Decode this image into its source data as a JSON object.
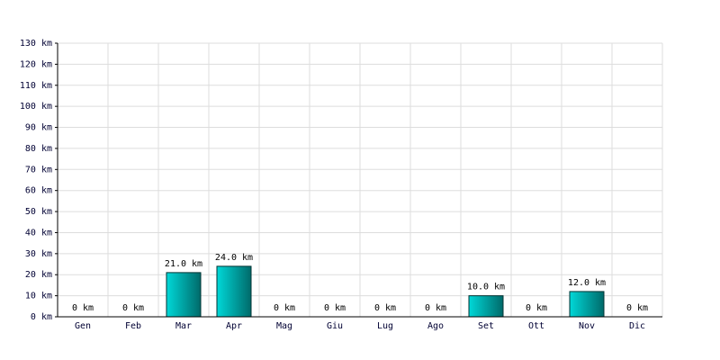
{
  "chart_data": {
    "type": "bar",
    "categories": [
      "Gen",
      "Feb",
      "Mar",
      "Apr",
      "Mag",
      "Giu",
      "Lug",
      "Ago",
      "Set",
      "Ott",
      "Nov",
      "Dic"
    ],
    "values": [
      0,
      0,
      21,
      24,
      0,
      0,
      0,
      0,
      10,
      0,
      12,
      0
    ],
    "value_labels": [
      "0 km",
      "0 km",
      "21.0 km",
      "24.0 km",
      "0 km",
      "0 km",
      "0 km",
      "0 km",
      "10.0 km",
      "0 km",
      "12.0 km",
      "0 km"
    ],
    "color": "#00d8d8",
    "ylim": [
      0,
      130
    ],
    "yticks": [
      {
        "value": 0,
        "label": "0 km"
      },
      {
        "value": 10,
        "label": "10 km"
      },
      {
        "value": 20,
        "label": "20 km"
      },
      {
        "value": 30,
        "label": "30 km"
      },
      {
        "value": 40,
        "label": "40 km"
      },
      {
        "value": 50,
        "label": "50 km"
      },
      {
        "value": 60,
        "label": "60 km"
      },
      {
        "value": 70,
        "label": "70 km"
      },
      {
        "value": 80,
        "label": "80 km"
      },
      {
        "value": 90,
        "label": "90 km"
      },
      {
        "value": 100,
        "label": "100 km"
      },
      {
        "value": 110,
        "label": "110 km"
      },
      {
        "value": 120,
        "label": "120 km"
      },
      {
        "value": 130,
        "label": "130 km"
      }
    ],
    "grid": true
  }
}
